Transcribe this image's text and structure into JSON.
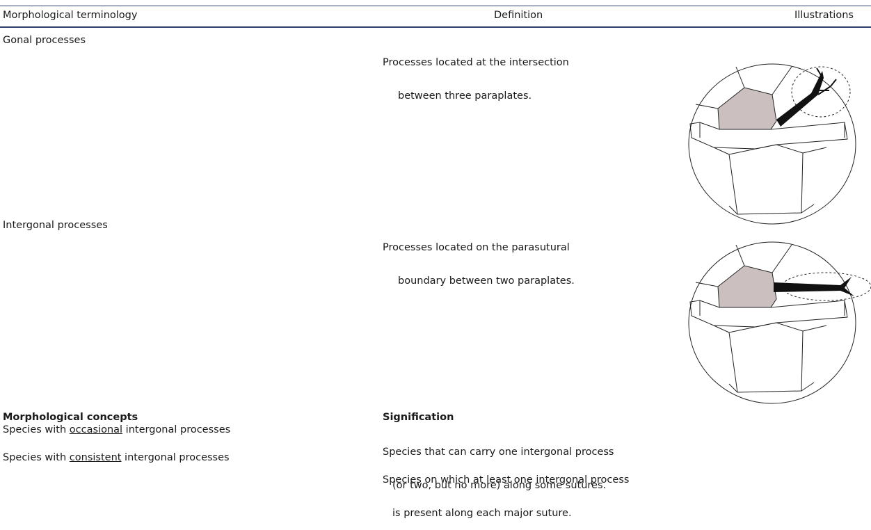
{
  "table": {
    "header": [
      "Morphological terminology",
      "Definition",
      "Illustrations"
    ],
    "rows": [
      {
        "term": "Gonal processes",
        "definition": [
          "Processes located at the intersection",
          "between three paraplates."
        ]
      },
      {
        "term": "Intergonal processes",
        "definition": [
          "Processes located on the parasutural",
          "boundary between two paraplates."
        ]
      }
    ],
    "concepts_header": [
      "Morphological concepts",
      "Signification"
    ],
    "concepts": [
      {
        "term": [
          "Species with ",
          "occasional",
          " intergonal processes"
        ],
        "signification": [
          "Species that can carry one intergonal process",
          "(or two, but no more) along some sutures."
        ]
      },
      {
        "term": [
          "Species with ",
          "consistent",
          " intergonal processes"
        ],
        "signification": [
          "Species on which at least one intergonal process",
          "is present along each major suture."
        ]
      }
    ]
  }
}
